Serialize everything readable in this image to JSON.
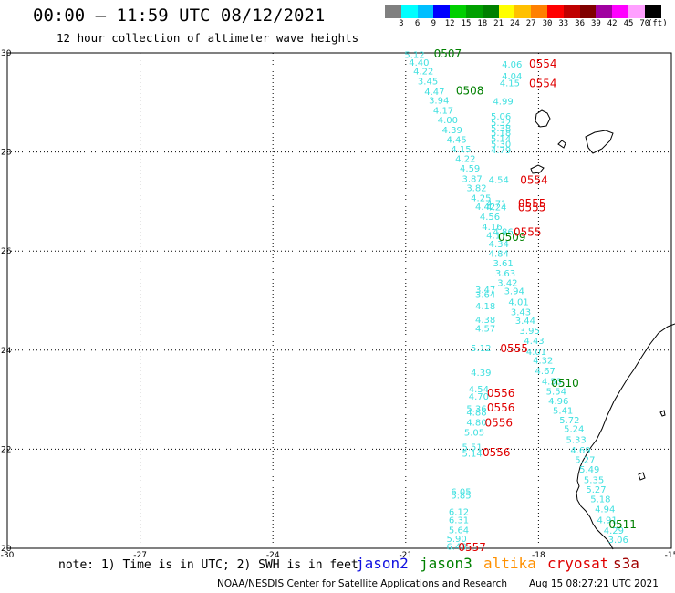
{
  "header": {
    "title": "00:00 – 11:59 UTC 08/12/2021",
    "subtitle": "12 hour collection of altimeter wave heights"
  },
  "colorbar": {
    "unit": "(ft)",
    "labels": [
      "3",
      "6",
      "9",
      "12",
      "15",
      "18",
      "21",
      "24",
      "27",
      "30",
      "33",
      "36",
      "39",
      "42",
      "45",
      "70"
    ],
    "colors": [
      "#808080",
      "#00ffff",
      "#00bfff",
      "#0000ff",
      "#00d000",
      "#00a000",
      "#008000",
      "#ffff00",
      "#ffc000",
      "#ff8000",
      "#ff0000",
      "#c00000",
      "#800000",
      "#a000a0",
      "#ff00ff",
      "#ffa0ff",
      "#000000"
    ]
  },
  "map": {
    "lon_range": [
      -30,
      -15
    ],
    "lat_range": [
      20,
      30
    ],
    "x_ticks": [
      "-30",
      "-27",
      "-24",
      "-21",
      "-18",
      "-15"
    ],
    "y_ticks": [
      "30",
      "28",
      "26",
      "24",
      "22",
      "20"
    ],
    "wave_color": "#40e0e0",
    "jason3_color": "#008000",
    "cryosat_color": "#e00000",
    "wave_labels": [
      {
        "lon": -20.8,
        "lat": 29.97,
        "text": "5.12"
      },
      {
        "lon": -20.7,
        "lat": 29.82,
        "text": "4.40"
      },
      {
        "lon": -20.6,
        "lat": 29.64,
        "text": "4.22"
      },
      {
        "lon": -20.5,
        "lat": 29.44,
        "text": "3.45"
      },
      {
        "lon": -20.35,
        "lat": 29.23,
        "text": "4.47"
      },
      {
        "lon": -20.25,
        "lat": 29.05,
        "text": "3.94"
      },
      {
        "lon": -20.15,
        "lat": 28.85,
        "text": "4.17"
      },
      {
        "lon": -20.05,
        "lat": 28.66,
        "text": "4.00"
      },
      {
        "lon": -19.95,
        "lat": 28.45,
        "text": "4.39"
      },
      {
        "lon": -19.85,
        "lat": 28.26,
        "text": "4.45"
      },
      {
        "lon": -19.75,
        "lat": 28.07,
        "text": "4.15"
      },
      {
        "lon": -19.65,
        "lat": 27.87,
        "text": "4.22"
      },
      {
        "lon": -19.55,
        "lat": 27.68,
        "text": "4.59"
      },
      {
        "lon": -19.5,
        "lat": 27.47,
        "text": "3.87"
      },
      {
        "lon": -19.4,
        "lat": 27.28,
        "text": "3.82"
      },
      {
        "lon": -19.3,
        "lat": 27.08,
        "text": "4.25"
      },
      {
        "lon": -19.2,
        "lat": 26.91,
        "text": "4.42"
      },
      {
        "lon": -19.1,
        "lat": 26.7,
        "text": "4.56"
      },
      {
        "lon": -19.05,
        "lat": 26.5,
        "text": "4.16"
      },
      {
        "lon": -18.95,
        "lat": 26.33,
        "text": "4.17"
      },
      {
        "lon": -18.9,
        "lat": 26.15,
        "text": "4.34"
      },
      {
        "lon": -18.9,
        "lat": 25.96,
        "text": "4.84"
      },
      {
        "lon": -18.8,
        "lat": 25.76,
        "text": "3.61"
      },
      {
        "lon": -18.75,
        "lat": 25.56,
        "text": "3.63"
      },
      {
        "lon": -18.7,
        "lat": 25.37,
        "text": "3.42"
      },
      {
        "lon": -18.55,
        "lat": 25.2,
        "text": "3.94"
      },
      {
        "lon": -18.45,
        "lat": 24.98,
        "text": "4.01"
      },
      {
        "lon": -18.4,
        "lat": 24.78,
        "text": "3.43"
      },
      {
        "lon": -18.3,
        "lat": 24.6,
        "text": "3.44"
      },
      {
        "lon": -18.2,
        "lat": 24.4,
        "text": "3.95"
      },
      {
        "lon": -18.1,
        "lat": 24.2,
        "text": "4.43"
      },
      {
        "lon": -18.05,
        "lat": 23.98,
        "text": "4.01"
      },
      {
        "lon": -17.9,
        "lat": 23.8,
        "text": "4.32"
      },
      {
        "lon": -17.85,
        "lat": 23.59,
        "text": "4.67"
      },
      {
        "lon": -17.7,
        "lat": 23.38,
        "text": "4.53"
      },
      {
        "lon": -17.6,
        "lat": 23.18,
        "text": "5.54"
      },
      {
        "lon": -17.55,
        "lat": 22.98,
        "text": "4.96"
      },
      {
        "lon": -17.45,
        "lat": 22.79,
        "text": "5.41"
      },
      {
        "lon": -17.3,
        "lat": 22.6,
        "text": "5.72"
      },
      {
        "lon": -17.2,
        "lat": 22.42,
        "text": "5.24"
      },
      {
        "lon": -17.15,
        "lat": 22.2,
        "text": "5.33"
      },
      {
        "lon": -17.05,
        "lat": 21.99,
        "text": "4.69"
      },
      {
        "lon": -16.95,
        "lat": 21.8,
        "text": "5.27"
      },
      {
        "lon": -16.85,
        "lat": 21.6,
        "text": "5.49"
      },
      {
        "lon": -16.75,
        "lat": 21.39,
        "text": "5.35"
      },
      {
        "lon": -16.7,
        "lat": 21.2,
        "text": "5.27"
      },
      {
        "lon": -16.6,
        "lat": 21.0,
        "text": "5.18"
      },
      {
        "lon": -16.5,
        "lat": 20.8,
        "text": "4.94"
      },
      {
        "lon": -16.45,
        "lat": 20.58,
        "text": "4.91"
      },
      {
        "lon": -16.3,
        "lat": 20.37,
        "text": "4.29"
      },
      {
        "lon": -16.2,
        "lat": 20.18,
        "text": "3.06"
      },
      {
        "lon": -18.6,
        "lat": 29.78,
        "text": "4.06"
      },
      {
        "lon": -18.6,
        "lat": 29.54,
        "text": "4.04"
      },
      {
        "lon": -18.65,
        "lat": 29.4,
        "text": "4.15"
      },
      {
        "lon": -18.8,
        "lat": 29.03,
        "text": "4.99"
      },
      {
        "lon": -18.85,
        "lat": 28.73,
        "text": "5.06"
      },
      {
        "lon": -18.85,
        "lat": 28.6,
        "text": "5.32"
      },
      {
        "lon": -18.85,
        "lat": 28.49,
        "text": "5.38"
      },
      {
        "lon": -18.85,
        "lat": 28.4,
        "text": "5.18"
      },
      {
        "lon": -18.85,
        "lat": 28.28,
        "text": "5.14"
      },
      {
        "lon": -18.85,
        "lat": 28.17,
        "text": "5.30"
      },
      {
        "lon": -18.85,
        "lat": 28.05,
        "text": "4.79"
      },
      {
        "lon": -18.9,
        "lat": 27.45,
        "text": "4.54"
      },
      {
        "lon": -18.95,
        "lat": 26.97,
        "text": "4.71"
      },
      {
        "lon": -18.95,
        "lat": 26.9,
        "text": "4.24"
      },
      {
        "lon": -18.8,
        "lat": 26.4,
        "text": "4.86"
      },
      {
        "lon": -19.2,
        "lat": 25.23,
        "text": "3.47"
      },
      {
        "lon": -19.2,
        "lat": 25.13,
        "text": "3.64"
      },
      {
        "lon": -19.2,
        "lat": 24.9,
        "text": "4.18"
      },
      {
        "lon": -19.2,
        "lat": 24.62,
        "text": "4.38"
      },
      {
        "lon": -19.2,
        "lat": 24.45,
        "text": "4.57"
      },
      {
        "lon": -19.3,
        "lat": 24.05,
        "text": "5.12"
      },
      {
        "lon": -19.3,
        "lat": 23.55,
        "text": "4.39"
      },
      {
        "lon": -19.35,
        "lat": 23.22,
        "text": "4.54"
      },
      {
        "lon": -19.35,
        "lat": 23.08,
        "text": "4.70"
      },
      {
        "lon": -19.4,
        "lat": 22.83,
        "text": "5.36"
      },
      {
        "lon": -19.4,
        "lat": 22.75,
        "text": "4.88"
      },
      {
        "lon": -19.4,
        "lat": 22.55,
        "text": "4.80"
      },
      {
        "lon": -19.45,
        "lat": 22.35,
        "text": "5.05"
      },
      {
        "lon": -19.5,
        "lat": 22.05,
        "text": "5.51"
      },
      {
        "lon": -19.5,
        "lat": 21.92,
        "text": "5.14"
      },
      {
        "lon": -19.75,
        "lat": 21.15,
        "text": "6.05"
      },
      {
        "lon": -19.75,
        "lat": 21.08,
        "text": "5.85"
      },
      {
        "lon": -19.8,
        "lat": 20.75,
        "text": "6.12"
      },
      {
        "lon": -19.8,
        "lat": 20.58,
        "text": "6.31"
      },
      {
        "lon": -19.8,
        "lat": 20.38,
        "text": "5.64"
      },
      {
        "lon": -19.85,
        "lat": 20.2,
        "text": "5.90"
      },
      {
        "lon": -19.85,
        "lat": 20.05,
        "text": "6.48"
      }
    ],
    "jason3_labels": [
      {
        "lon": -20.05,
        "lat": 30.0,
        "text": "0507"
      },
      {
        "lon": -19.55,
        "lat": 29.25,
        "text": "0508"
      },
      {
        "lon": -18.6,
        "lat": 26.3,
        "text": "0509"
      },
      {
        "lon": -17.4,
        "lat": 23.35,
        "text": "0510"
      },
      {
        "lon": -16.1,
        "lat": 20.5,
        "text": "0511"
      }
    ],
    "cryosat_labels": [
      {
        "lon": -17.9,
        "lat": 29.8,
        "text": "0554"
      },
      {
        "lon": -17.9,
        "lat": 29.4,
        "text": "0554"
      },
      {
        "lon": -18.1,
        "lat": 27.45,
        "text": "0554"
      },
      {
        "lon": -18.15,
        "lat": 26.98,
        "text": "0555"
      },
      {
        "lon": -18.15,
        "lat": 26.9,
        "text": "0555"
      },
      {
        "lon": -18.25,
        "lat": 26.4,
        "text": "0555"
      },
      {
        "lon": -18.55,
        "lat": 24.05,
        "text": "0555"
      },
      {
        "lon": -18.85,
        "lat": 23.15,
        "text": "0556"
      },
      {
        "lon": -18.85,
        "lat": 22.85,
        "text": "0556"
      },
      {
        "lon": -18.9,
        "lat": 22.55,
        "text": "0556"
      },
      {
        "lon": -18.95,
        "lat": 21.95,
        "text": "0556"
      },
      {
        "lon": -19.5,
        "lat": 20.04,
        "text": "0557"
      }
    ]
  },
  "footer": {
    "note": "note: 1) Time is in UTC; 2) SWH is in feet",
    "legend": [
      {
        "label": "jason2",
        "color": "#1010e0"
      },
      {
        "label": "jason3",
        "color": "#008000"
      },
      {
        "label": "altika",
        "color": "#ff9000"
      },
      {
        "label": "cryosat",
        "color": "#e00000"
      },
      {
        "label": "s3a",
        "color": "#a00000"
      }
    ],
    "credit": "NOAA/NESDIS Center for Satellite Applications and Research",
    "timestamp": "Aug 15 08:27:21 UTC 2021"
  }
}
